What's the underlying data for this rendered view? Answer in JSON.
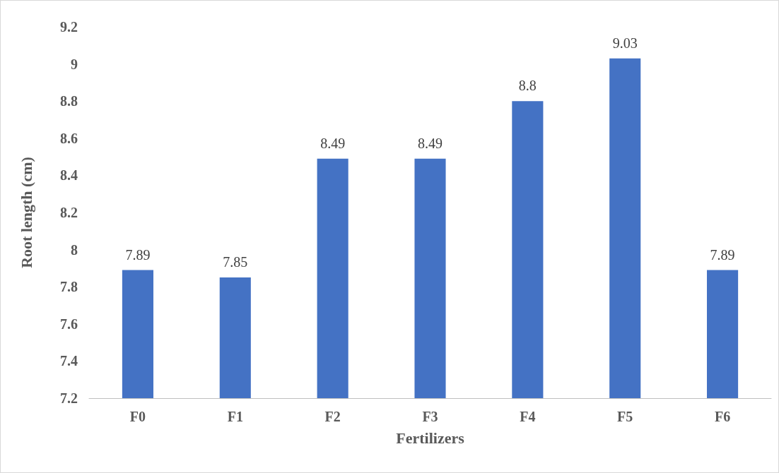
{
  "chart_data": {
    "type": "bar",
    "xlabel": "Fertilizers",
    "ylabel": "Root length (cm)",
    "categories": [
      "F0",
      "F1",
      "F2",
      "F3",
      "F4",
      "F5",
      "F6"
    ],
    "values": [
      7.89,
      7.85,
      8.49,
      8.49,
      8.8,
      9.03,
      7.89
    ],
    "color": "#4472c4",
    "ylim": [
      7.2,
      9.2
    ],
    "yticks": [
      7.2,
      7.4,
      7.6,
      7.8,
      8,
      8.2,
      8.4,
      8.6,
      8.8,
      9,
      9.2
    ],
    "grid": false,
    "data_labels": true
  }
}
